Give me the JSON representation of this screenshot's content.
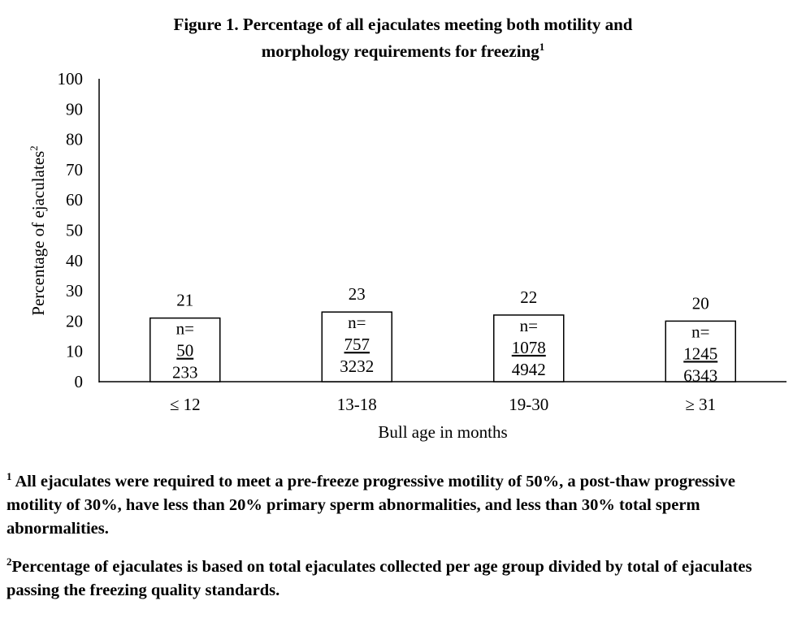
{
  "figure": {
    "title_line1": "Figure 1. Percentage of all ejaculates meeting both motility and",
    "title_line2": "morphology requirements for freezing",
    "title_sup": "1"
  },
  "chart_data": {
    "type": "bar",
    "title": "Figure 1. Percentage of all ejaculates meeting both motility and morphology requirements for freezing",
    "xlabel": "Bull age in months",
    "ylabel": "Percentage of ejaculates",
    "ylabel_sup": "2",
    "ylim": [
      0,
      100
    ],
    "yticks": [
      0,
      10,
      20,
      30,
      40,
      50,
      60,
      70,
      80,
      90,
      100
    ],
    "categories": [
      "≤ 12",
      "13-18",
      "19-30",
      "≥ 31"
    ],
    "values": [
      21,
      23,
      22,
      20
    ],
    "n_label": "n=",
    "n_numerators": [
      "50",
      "757",
      "1078",
      "1245"
    ],
    "n_denominators": [
      "233",
      "3232",
      "4942",
      "6343"
    ],
    "grid": false,
    "legend": "none",
    "bar_fill": "#ffffff",
    "bar_stroke": "#000000"
  },
  "footnotes": [
    {
      "sup": "1",
      "text": " All ejaculates were required to meet a pre-freeze progressive motility of 50%, a post-thaw progressive motility of 30%, have less than 20% primary sperm abnormalities, and less than 30% total sperm abnormalities."
    },
    {
      "sup": "2",
      "text": "Percentage of ejaculates is based on total ejaculates collected per age group divided by total of ejaculates passing the freezing quality standards."
    }
  ]
}
